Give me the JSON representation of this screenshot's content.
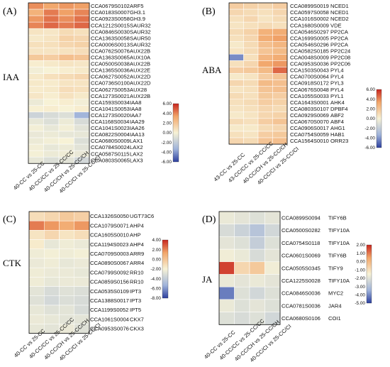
{
  "colors": {
    "low": "#2c3f9e",
    "mid": "#f7f2d6",
    "high": "#c8261f"
  },
  "chart_data": [
    {
      "type": "heatmap",
      "panel_letter": "(A)",
      "group_label": "IAA",
      "columns": [
        "40-CC vs 25-CC",
        "40-CC/CC vs 25-CC/CC",
        "40-CC/CH vs 25-CC/CH",
        "40-CC/CI vs 25-CC/CI"
      ],
      "rows": [
        {
          "id": "CCA0679S0102",
          "gene": "ARF5",
          "values": [
            3.8,
            3.2,
            3.6,
            3.4
          ]
        },
        {
          "id": "CCA0183S0007",
          "gene": "GH3.1",
          "values": [
            2.8,
            4.2,
            3.4,
            4.0
          ]
        },
        {
          "id": "CCA0923S0058",
          "gene": "GH3.9",
          "values": [
            3.6,
            4.4,
            3.8,
            4.4
          ]
        },
        {
          "id": "CCA1212S0015",
          "gene": "SAUR32",
          "values": [
            4.0,
            4.6,
            4.2,
            4.6
          ]
        },
        {
          "id": "CCA0846S0030",
          "gene": "SAUR32",
          "values": [
            0.6,
            0.5,
            1.0,
            0.8
          ]
        },
        {
          "id": "CCA1363S0058",
          "gene": "SAUR50",
          "values": [
            0.4,
            0.6,
            1.4,
            1.2
          ]
        },
        {
          "id": "CCA0006S0013",
          "gene": "SAUR32",
          "values": [
            0.8,
            0.8,
            1.2,
            1.4
          ]
        },
        {
          "id": "CCA0762S0076",
          "gene": "AUX22B",
          "values": [
            0.6,
            0.6,
            0.7,
            0.9
          ]
        },
        {
          "id": "CCA1363S0065",
          "gene": "AUX10A",
          "values": [
            1.8,
            1.6,
            2.2,
            2.0
          ]
        },
        {
          "id": "CCA0500S0038",
          "gene": "AUX22B",
          "values": [
            0.2,
            0.4,
            0.6,
            0.5
          ]
        },
        {
          "id": "CCA1365S0036",
          "gene": "AUX22E",
          "values": [
            -0.2,
            0.0,
            0.2,
            0.4
          ]
        },
        {
          "id": "CCA0627S0052",
          "gene": "AUX22D",
          "values": [
            0.4,
            0.8,
            1.0,
            1.2
          ]
        },
        {
          "id": "CCA0736S0100",
          "gene": "AUX22D",
          "values": [
            0.4,
            0.3,
            0.6,
            0.6
          ]
        },
        {
          "id": "CCA0627S0053",
          "gene": "AUX28",
          "values": [
            0.3,
            0.4,
            0.9,
            0.8
          ]
        },
        {
          "id": "CCA1273S0021",
          "gene": "AUX22B",
          "values": [
            0.5,
            0.2,
            0.7,
            0.4
          ]
        },
        {
          "id": "CCA1593S0034",
          "gene": "IAA8",
          "values": [
            -0.4,
            0.0,
            0.2,
            -0.2
          ]
        },
        {
          "id": "CCA1041S0053",
          "gene": "IAA8",
          "values": [
            0.1,
            0.2,
            0.0,
            0.2
          ]
        },
        {
          "id": "CCA1273S0020",
          "gene": "IAA7",
          "values": [
            -1.6,
            -1.2,
            -1.0,
            -3.2
          ]
        },
        {
          "id": "CCA1168S0034",
          "gene": "IAA29",
          "values": [
            -0.6,
            -1.0,
            -0.4,
            -1.2
          ]
        },
        {
          "id": "CCA1041S0023",
          "gene": "IAA26",
          "values": [
            -0.2,
            -0.6,
            -0.2,
            -0.8
          ]
        },
        {
          "id": "CCA0822S0004",
          "gene": "IAA13",
          "values": [
            -0.5,
            -0.4,
            -0.6,
            -0.6
          ]
        },
        {
          "id": "CCA0680S0009",
          "gene": "LAX1",
          "values": [
            -0.4,
            -0.2,
            0.0,
            -1.0
          ]
        },
        {
          "id": "CCA0784S0024",
          "gene": "LAX2",
          "values": [
            -0.2,
            -0.6,
            -0.4,
            -0.8
          ]
        },
        {
          "id": "CCA0587S0115",
          "gene": "LAX2",
          "values": [
            -0.1,
            -0.4,
            -0.3,
            -0.5
          ]
        },
        {
          "id": "CCA0803S0065",
          "gene": "LAX3",
          "values": [
            -0.6,
            -1.0,
            -0.8,
            -1.4
          ]
        }
      ],
      "legend_ticks": [
        "6.00",
        "4.00",
        "2.00",
        "0.00",
        "-2.00",
        "-4.00",
        "-6.00"
      ],
      "vmin": -6,
      "vmax": 6
    },
    {
      "type": "heatmap",
      "panel_letter": "(B)",
      "group_label": "ABA",
      "columns": [
        "43-CC vs 25-CC",
        "43-CC/CC vs 25-CC/CC",
        "40-CC/CH vs 25-CC/CH",
        "40-CC/CI vs 25-CC/CI"
      ],
      "rows": [
        {
          "id": "CCA0899S0019",
          "gene": "NCED1",
          "values": [
            1.6,
            1.4,
            1.2,
            1.6
          ]
        },
        {
          "id": "CCA0597S0058",
          "gene": "NCED1",
          "values": [
            1.2,
            1.0,
            0.8,
            1.2
          ]
        },
        {
          "id": "CCA1016S0002",
          "gene": "NCED2",
          "values": [
            0.8,
            1.2,
            0.6,
            1.0
          ]
        },
        {
          "id": "CCA1680S0009",
          "gene": "VDE",
          "values": [
            0.6,
            0.8,
            1.0,
            0.8
          ]
        },
        {
          "id": "CCA0546S0297",
          "gene": "PP2CA",
          "values": [
            1.0,
            1.4,
            2.8,
            3.0
          ]
        },
        {
          "id": "CCA1699S0005",
          "gene": "PP2CA",
          "values": [
            0.8,
            1.2,
            3.0,
            3.4
          ]
        },
        {
          "id": "CCA0546S0296",
          "gene": "PP2CA",
          "values": [
            0.4,
            1.0,
            2.2,
            2.6
          ]
        },
        {
          "id": "CCA0582S0185",
          "gene": "PP2C24",
          "values": [
            0.6,
            1.0,
            2.0,
            2.4
          ]
        },
        {
          "id": "CCA0048S0009",
          "gene": "PP2C08",
          "values": [
            -4.2,
            0.8,
            2.6,
            3.0
          ]
        },
        {
          "id": "CCA0953S0036",
          "gene": "PP2C06",
          "values": [
            0.8,
            1.2,
            3.2,
            3.6
          ]
        },
        {
          "id": "CCA1503S0043",
          "gene": "PYL4",
          "values": [
            1.6,
            1.8,
            2.4,
            4.6
          ]
        },
        {
          "id": "CCA0700S0064",
          "gene": "PYL4",
          "values": [
            0.4,
            0.6,
            1.6,
            2.0
          ]
        },
        {
          "id": "CCA0918S0172",
          "gene": "PYL3",
          "values": [
            1.2,
            1.0,
            2.4,
            2.2
          ]
        },
        {
          "id": "CCA0676S0048",
          "gene": "PYL4",
          "values": [
            0.6,
            0.8,
            2.0,
            2.2
          ]
        },
        {
          "id": "CCA1055S0033",
          "gene": "PYL1",
          "values": [
            1.0,
            0.8,
            1.8,
            1.6
          ]
        },
        {
          "id": "CCA1643S0001",
          "gene": "AHK4",
          "values": [
            0.8,
            1.0,
            1.6,
            1.4
          ]
        },
        {
          "id": "CCA0803S0107",
          "gene": "DPBF4",
          "values": [
            0.6,
            0.8,
            1.2,
            1.0
          ]
        },
        {
          "id": "CCA0929S0069",
          "gene": "ABF2",
          "values": [
            0.4,
            0.6,
            1.2,
            1.4
          ]
        },
        {
          "id": "CCA0670S0070",
          "gene": "ABF4",
          "values": [
            1.0,
            0.8,
            1.6,
            2.0
          ]
        },
        {
          "id": "CCA0906S0017",
          "gene": "AHG1",
          "values": [
            0.4,
            0.4,
            1.0,
            1.2
          ]
        },
        {
          "id": "CCA0754S0059",
          "gene": "HAB1",
          "values": [
            0.8,
            0.6,
            1.6,
            1.8
          ]
        },
        {
          "id": "CCA1564S0010",
          "gene": "ORR23",
          "values": [
            1.2,
            1.0,
            2.0,
            2.2
          ]
        }
      ],
      "legend_ticks": [
        "6.00",
        "4.00",
        "2.00",
        "0.00",
        "-2.00",
        "-4.00",
        "-6.00"
      ],
      "vmin": -6,
      "vmax": 6
    },
    {
      "type": "heatmap",
      "panel_letter": "(C)",
      "group_label": "CTK",
      "columns": [
        "40-CC vs 25-CC",
        "40-CC/CC vs 25-CC/CC",
        "40-CC/CH vs 25-CC/CH",
        "40-CC/CI vs 25-CC/CI"
      ],
      "rows": [
        {
          "id": "CCA1326S0050",
          "gene": "UGT73C6",
          "values": [
            0.6,
            0.8,
            1.2,
            1.0
          ]
        },
        {
          "id": "CCA1079S0071",
          "gene": "AHP4",
          "values": [
            2.8,
            2.4,
            2.0,
            2.4
          ]
        },
        {
          "id": "CCA1605S0010",
          "gene": "AHP",
          "values": [
            0.4,
            0.8,
            0.4,
            0.6
          ]
        },
        {
          "id": "CCA1194S0023",
          "gene": "AHP4",
          "values": [
            0.2,
            -0.8,
            -0.4,
            -0.6
          ]
        },
        {
          "id": "CCA0709S0003",
          "gene": "ARR9",
          "values": [
            -0.4,
            -0.2,
            -0.4,
            -0.2
          ]
        },
        {
          "id": "CCA0890S0067",
          "gene": "ARR4",
          "values": [
            -0.6,
            -0.4,
            -0.8,
            -0.6
          ]
        },
        {
          "id": "CCA0799S0092",
          "gene": "RR10",
          "values": [
            -0.4,
            -0.6,
            -0.6,
            -0.8
          ]
        },
        {
          "id": "CCA0859S0156",
          "gene": "RR10",
          "values": [
            -0.4,
            -0.8,
            -0.6,
            -0.6
          ]
        },
        {
          "id": "CCA0535S0109",
          "gene": "IPT3",
          "values": [
            -1.0,
            -1.6,
            -1.2,
            -1.4
          ]
        },
        {
          "id": "CCA1388S0017",
          "gene": "IPT3",
          "values": [
            -1.2,
            -1.8,
            -1.4,
            -1.6
          ]
        },
        {
          "id": "CCA1199S0052",
          "gene": "IPT5",
          "values": [
            -0.8,
            -1.2,
            -1.0,
            -1.6
          ]
        },
        {
          "id": "CCA1061S0004",
          "gene": "CKX7",
          "values": [
            -0.6,
            -0.8,
            -1.0,
            -1.0
          ]
        },
        {
          "id": "CCA0953S0076",
          "gene": "CKX3",
          "values": [
            -0.8,
            -1.0,
            -0.6,
            -1.2
          ]
        }
      ],
      "legend_ticks": [
        "4.00",
        "2.00",
        "0.00",
        "-2.00",
        "-4.00",
        "-6.00",
        "-8.00"
      ],
      "vmin": -8,
      "vmax": 4
    },
    {
      "type": "heatmap",
      "panel_letter": "(D)",
      "group_label": "JA",
      "columns": [
        "40-CC vs 25-CC",
        "40-CC/CC vs 25-CC/CC",
        "40-CC/CH vs 25-CC/CH",
        "40-CC/CI vs 25-CC/CI"
      ],
      "rows": [
        {
          "id": "CCA0899S0094",
          "gene": "TIFY6B",
          "values": [
            -0.4,
            -0.6,
            -0.8,
            -0.6
          ]
        },
        {
          "id": "CCA0500S0282",
          "gene": "TIFY10A",
          "values": [
            -1.0,
            -1.4,
            -2.0,
            -1.2
          ]
        },
        {
          "id": "CCA0754S0118",
          "gene": "TIFY10A",
          "values": [
            -0.6,
            -0.8,
            -1.6,
            -0.8
          ]
        },
        {
          "id": "CCA0601S0069",
          "gene": "TIFY6B",
          "values": [
            -0.2,
            -0.4,
            -1.0,
            -0.6
          ]
        },
        {
          "id": "CCA0505S0345",
          "gene": "TIFY9",
          "values": [
            1.8,
            0.4,
            0.6,
            -0.2
          ]
        },
        {
          "id": "CCA1225S0028",
          "gene": "TIFY10A",
          "values": [
            -0.4,
            -0.6,
            -0.4,
            -0.6
          ]
        },
        {
          "id": "CCA0846S0036",
          "gene": "MYC2",
          "values": [
            -3.8,
            -0.8,
            -1.2,
            -0.8
          ]
        },
        {
          "id": "CCA0781S0036",
          "gene": "JAR4",
          "values": [
            -0.4,
            -0.8,
            -0.6,
            -0.8
          ]
        },
        {
          "id": "CCA0680S0106",
          "gene": "COI1",
          "values": [
            -0.8,
            -1.0,
            -0.8,
            -1.2
          ]
        }
      ],
      "legend_ticks": [
        "2.00",
        "1.00",
        "0.00",
        "-1.00",
        "-2.00",
        "-3.00",
        "-4.00",
        "-5.00"
      ],
      "vmin": -5,
      "vmax": 2
    }
  ]
}
